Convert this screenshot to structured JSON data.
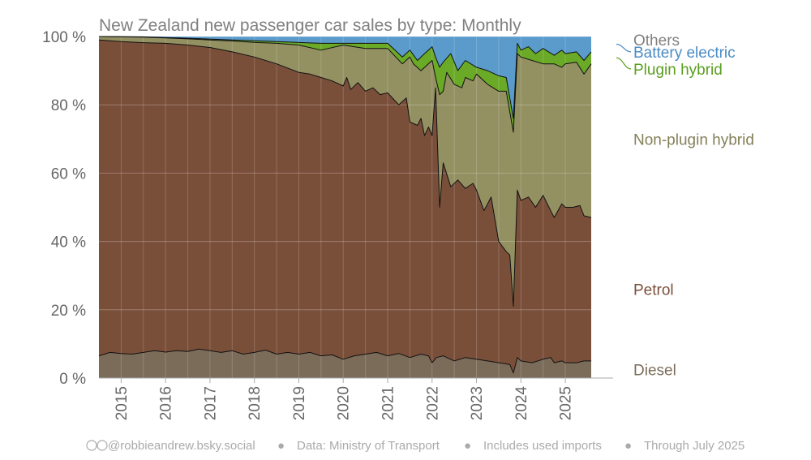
{
  "chart_data": {
    "type": "area",
    "title": "New Zealand new passenger car sales by type: Monthly",
    "stacking": "percent",
    "ylim": [
      0,
      100
    ],
    "yticks": [
      0,
      20,
      40,
      60,
      80,
      100
    ],
    "ytick_labels": [
      "0 %",
      "20 %",
      "40 %",
      "60 %",
      "80 %",
      "100 %"
    ],
    "xlim": [
      2014.5,
      2025.583
    ],
    "xtick_years": [
      2015,
      2016,
      2017,
      2018,
      2019,
      2020,
      2021,
      2022,
      2023,
      2024,
      2025
    ],
    "xtick_labels": [
      "2015",
      "2016",
      "2017",
      "2018",
      "2019",
      "2020",
      "2021",
      "2022",
      "2023",
      "2024",
      "2025"
    ],
    "grid": true,
    "legend": "right, inline labels",
    "cumulative_upper_bounds": [
      {
        "name": "Diesel",
        "color": "#7b6c5a",
        "points": [
          [
            2014.5,
            6.5
          ],
          [
            2014.75,
            7.5
          ],
          [
            2015.0,
            7.2
          ],
          [
            2015.25,
            7.0
          ],
          [
            2015.5,
            7.5
          ],
          [
            2015.75,
            8.0
          ],
          [
            2016.0,
            7.6
          ],
          [
            2016.25,
            8.0
          ],
          [
            2016.5,
            7.8
          ],
          [
            2016.75,
            8.5
          ],
          [
            2017.0,
            8.0
          ],
          [
            2017.25,
            7.5
          ],
          [
            2017.5,
            8.0
          ],
          [
            2017.75,
            7.0
          ],
          [
            2018.0,
            7.5
          ],
          [
            2018.25,
            8.2
          ],
          [
            2018.5,
            7.0
          ],
          [
            2018.75,
            7.5
          ],
          [
            2019.0,
            7.0
          ],
          [
            2019.25,
            7.5
          ],
          [
            2019.5,
            6.5
          ],
          [
            2019.75,
            6.8
          ],
          [
            2020.0,
            5.5
          ],
          [
            2020.25,
            6.5
          ],
          [
            2020.5,
            7.0
          ],
          [
            2020.75,
            7.5
          ],
          [
            2021.0,
            6.5
          ],
          [
            2021.25,
            7.2
          ],
          [
            2021.5,
            6.0
          ],
          [
            2021.75,
            7.0
          ],
          [
            2021.92,
            6.5
          ],
          [
            2022.0,
            4.5
          ],
          [
            2022.1,
            6.0
          ],
          [
            2022.25,
            6.5
          ],
          [
            2022.5,
            5.0
          ],
          [
            2022.75,
            6.0
          ],
          [
            2023.0,
            5.5
          ],
          [
            2023.25,
            5.0
          ],
          [
            2023.5,
            4.5
          ],
          [
            2023.75,
            4.0
          ],
          [
            2023.83,
            1.5
          ],
          [
            2023.92,
            6.0
          ],
          [
            2024.0,
            5.0
          ],
          [
            2024.25,
            4.5
          ],
          [
            2024.5,
            5.5
          ],
          [
            2024.67,
            6.0
          ],
          [
            2024.75,
            4.5
          ],
          [
            2024.92,
            5.0
          ],
          [
            2025.0,
            4.5
          ],
          [
            2025.25,
            4.5
          ],
          [
            2025.42,
            5.0
          ],
          [
            2025.583,
            5.0
          ]
        ]
      },
      {
        "name": "Petrol",
        "color": "#7a4f3a",
        "points": [
          [
            2014.5,
            99.0
          ],
          [
            2015.0,
            98.5
          ],
          [
            2015.5,
            98.2
          ],
          [
            2016.0,
            98.0
          ],
          [
            2016.5,
            97.5
          ],
          [
            2017.0,
            96.8
          ],
          [
            2017.5,
            95.5
          ],
          [
            2018.0,
            94.0
          ],
          [
            2018.5,
            92.0
          ],
          [
            2019.0,
            89.5
          ],
          [
            2019.25,
            89.0
          ],
          [
            2019.5,
            88.0
          ],
          [
            2019.75,
            87.0
          ],
          [
            2020.0,
            85.5
          ],
          [
            2020.08,
            88.0
          ],
          [
            2020.17,
            84.5
          ],
          [
            2020.33,
            86.5
          ],
          [
            2020.5,
            84.0
          ],
          [
            2020.67,
            85.0
          ],
          [
            2020.83,
            83.0
          ],
          [
            2021.0,
            83.5
          ],
          [
            2021.25,
            80.0
          ],
          [
            2021.42,
            82.0
          ],
          [
            2021.5,
            75.0
          ],
          [
            2021.67,
            74.0
          ],
          [
            2021.75,
            76.0
          ],
          [
            2021.83,
            71.0
          ],
          [
            2021.92,
            73.5
          ],
          [
            2022.0,
            71.0
          ],
          [
            2022.08,
            85.0
          ],
          [
            2022.17,
            50.0
          ],
          [
            2022.25,
            63.0
          ],
          [
            2022.42,
            56.0
          ],
          [
            2022.58,
            58.0
          ],
          [
            2022.75,
            55.5
          ],
          [
            2022.92,
            57.0
          ],
          [
            2023.0,
            55.0
          ],
          [
            2023.17,
            49.0
          ],
          [
            2023.33,
            53.0
          ],
          [
            2023.5,
            40.0
          ],
          [
            2023.67,
            37.0
          ],
          [
            2023.75,
            36.0
          ],
          [
            2023.83,
            21.0
          ],
          [
            2023.92,
            55.0
          ],
          [
            2024.0,
            52.0
          ],
          [
            2024.17,
            53.0
          ],
          [
            2024.33,
            50.0
          ],
          [
            2024.5,
            53.5
          ],
          [
            2024.67,
            49.0
          ],
          [
            2024.75,
            47.0
          ],
          [
            2024.92,
            51.0
          ],
          [
            2025.0,
            50.0
          ],
          [
            2025.17,
            50.0
          ],
          [
            2025.33,
            50.5
          ],
          [
            2025.42,
            47.5
          ],
          [
            2025.583,
            47.0
          ]
        ]
      },
      {
        "name": "Non-plugin hybrid",
        "color": "#939062",
        "points": [
          [
            2014.5,
            100.0
          ],
          [
            2015.0,
            99.9
          ],
          [
            2015.5,
            99.8
          ],
          [
            2016.0,
            99.6
          ],
          [
            2016.5,
            99.3
          ],
          [
            2017.0,
            99.0
          ],
          [
            2017.5,
            98.7
          ],
          [
            2018.0,
            98.3
          ],
          [
            2018.5,
            98.0
          ],
          [
            2019.0,
            97.5
          ],
          [
            2019.5,
            96.0
          ],
          [
            2020.0,
            97.5
          ],
          [
            2020.5,
            96.5
          ],
          [
            2021.0,
            96.5
          ],
          [
            2021.33,
            92.0
          ],
          [
            2021.5,
            94.0
          ],
          [
            2021.58,
            92.0
          ],
          [
            2021.75,
            90.0
          ],
          [
            2022.0,
            93.0
          ],
          [
            2022.08,
            88.0
          ],
          [
            2022.17,
            83.0
          ],
          [
            2022.25,
            84.0
          ],
          [
            2022.33,
            89.5
          ],
          [
            2022.5,
            86.0
          ],
          [
            2022.67,
            85.0
          ],
          [
            2022.75,
            88.0
          ],
          [
            2022.92,
            87.0
          ],
          [
            2023.0,
            89.0
          ],
          [
            2023.25,
            86.0
          ],
          [
            2023.5,
            84.0
          ],
          [
            2023.67,
            84.0
          ],
          [
            2023.83,
            72.0
          ],
          [
            2023.92,
            95.0
          ],
          [
            2024.0,
            94.0
          ],
          [
            2024.25,
            93.0
          ],
          [
            2024.5,
            92.0
          ],
          [
            2024.75,
            92.0
          ],
          [
            2024.92,
            91.0
          ],
          [
            2025.0,
            92.0
          ],
          [
            2025.25,
            92.5
          ],
          [
            2025.42,
            89.0
          ],
          [
            2025.583,
            92.0
          ]
        ]
      },
      {
        "name": "Plugin hybrid",
        "color": "#6aaa27",
        "points": [
          [
            2014.5,
            100.0
          ],
          [
            2015.5,
            99.9
          ],
          [
            2016.5,
            99.5
          ],
          [
            2017.5,
            99.0
          ],
          [
            2018.5,
            98.5
          ],
          [
            2019.5,
            98.0
          ],
          [
            2020.5,
            98.0
          ],
          [
            2021.0,
            98.0
          ],
          [
            2021.33,
            94.0
          ],
          [
            2021.5,
            96.0
          ],
          [
            2021.67,
            93.0
          ],
          [
            2021.83,
            95.0
          ],
          [
            2022.0,
            97.0
          ],
          [
            2022.08,
            94.0
          ],
          [
            2022.17,
            91.0
          ],
          [
            2022.25,
            92.5
          ],
          [
            2022.42,
            95.0
          ],
          [
            2022.58,
            90.0
          ],
          [
            2022.75,
            93.0
          ],
          [
            2023.0,
            91.0
          ],
          [
            2023.25,
            90.0
          ],
          [
            2023.5,
            88.5
          ],
          [
            2023.67,
            88.0
          ],
          [
            2023.83,
            76.0
          ],
          [
            2023.92,
            98.0
          ],
          [
            2024.0,
            96.0
          ],
          [
            2024.17,
            97.0
          ],
          [
            2024.33,
            95.0
          ],
          [
            2024.5,
            96.5
          ],
          [
            2024.75,
            94.5
          ],
          [
            2024.92,
            96.0
          ],
          [
            2025.0,
            95.0
          ],
          [
            2025.25,
            95.5
          ],
          [
            2025.42,
            93.0
          ],
          [
            2025.583,
            95.5
          ]
        ]
      },
      {
        "name": "Battery electric",
        "color": "#5b9bcb",
        "points": [
          [
            2014.5,
            100.0
          ],
          [
            2025.583,
            100.0
          ]
        ]
      },
      {
        "name": "Others",
        "color": "#888888",
        "points": [
          [
            2014.5,
            100.0
          ],
          [
            2025.583,
            100.0
          ]
        ]
      }
    ],
    "annotations": {
      "right_labels": [
        {
          "name": "Others",
          "text": "Others",
          "color": "#808080",
          "y": 99.0
        },
        {
          "name": "Battery electric",
          "text": "Battery electric",
          "color": "#4a8cc4",
          "y": 95.5
        },
        {
          "name": "Plugin hybrid",
          "text": "Plugin hybrid",
          "color": "#5a9e1f",
          "y": 90.5
        },
        {
          "name": "Non-plugin hybrid",
          "text": "Non-plugin hybrid",
          "color": "#838058",
          "y": 70.0
        },
        {
          "name": "Petrol",
          "text": "Petrol",
          "color": "#7a4f3a",
          "y": 26.0
        },
        {
          "name": "Diesel",
          "text": "Diesel",
          "color": "#7b6c5a",
          "y": 2.5
        }
      ]
    },
    "footer": {
      "credit": "@robbieandrew.bsky.social",
      "data_source": "Data: Ministry of Transport",
      "note": "Includes used imports",
      "through": "Through July 2025",
      "separator": "●"
    }
  }
}
